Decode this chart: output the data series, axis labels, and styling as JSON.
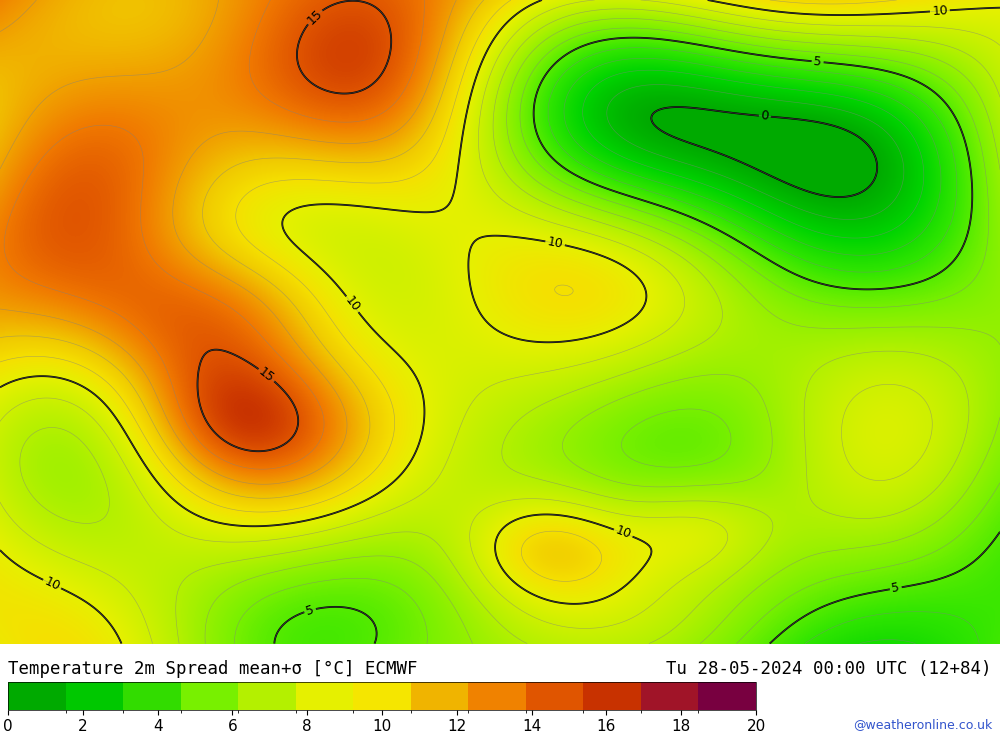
{
  "title_left": "Temperature 2m Spread mean+σ [°C] ECMWF",
  "title_right": "Tu 28-05-2024 00:00 UTC (12+84)",
  "colorbar_ticks": [
    0,
    2,
    4,
    6,
    8,
    10,
    12,
    14,
    16,
    18,
    20
  ],
  "colorbar_colors": [
    "#00aa00",
    "#00c800",
    "#32dc00",
    "#78f000",
    "#b4f000",
    "#e6f000",
    "#f5e600",
    "#f0b400",
    "#f08200",
    "#e05500",
    "#c83200",
    "#a01428",
    "#780040"
  ],
  "watermark": "@weatheronline.co.uk",
  "fig_width": 10.0,
  "fig_height": 7.33
}
